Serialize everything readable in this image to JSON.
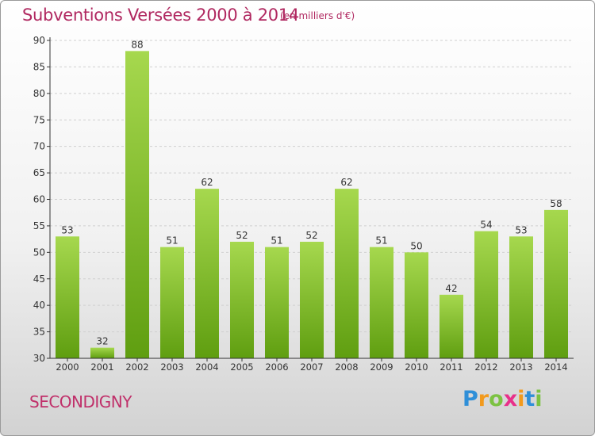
{
  "header": {
    "title": "Subventions Versées 2000 à 2014",
    "subtitle": "(en milliers d'€)"
  },
  "footer": {
    "commune": "SECONDIGNY",
    "logo_letters": [
      {
        "ch": "P",
        "color": "#2f8fd8"
      },
      {
        "ch": "r",
        "color": "#f29a1d"
      },
      {
        "ch": "o",
        "color": "#7cc242"
      },
      {
        "ch": "x",
        "color": "#e8308a"
      },
      {
        "ch": "i",
        "color": "#f29a1d"
      },
      {
        "ch": "t",
        "color": "#2f8fd8"
      },
      {
        "ch": "i",
        "color": "#7cc242"
      }
    ]
  },
  "colors": {
    "bar_top": "#a6d84e",
    "bar_bottom": "#5f9e10",
    "axis": "#333333",
    "grid": "#d0d0d0",
    "title": "#b02860"
  },
  "chart_data": {
    "type": "bar",
    "title": "Subventions Versées 2000 à 2014",
    "categories": [
      "2000",
      "2001",
      "2002",
      "2003",
      "2004",
      "2005",
      "2006",
      "2007",
      "2008",
      "2009",
      "2010",
      "2011",
      "2012",
      "2013",
      "2014"
    ],
    "values": [
      53,
      32,
      88,
      51,
      62,
      52,
      51,
      52,
      62,
      51,
      50,
      42,
      54,
      53,
      58
    ],
    "ylim": [
      30,
      90
    ],
    "yticks": [
      30,
      35,
      40,
      45,
      50,
      55,
      60,
      65,
      70,
      75,
      80,
      85,
      90
    ],
    "grid": "horizontal dashed",
    "xlabel": "",
    "ylabel": ""
  }
}
